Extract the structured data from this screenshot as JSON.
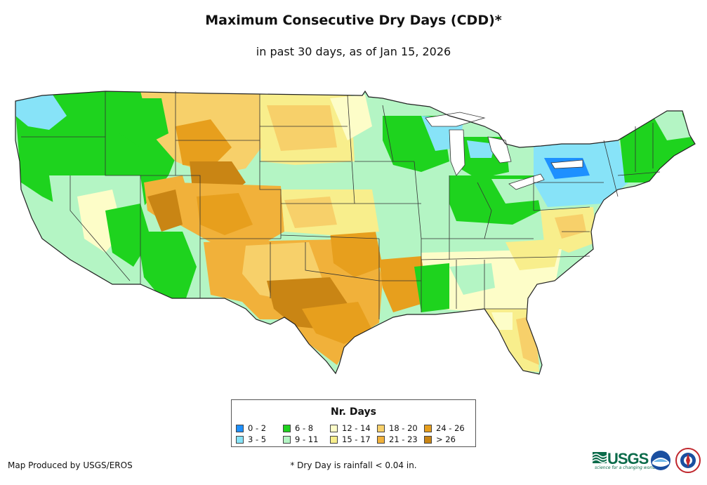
{
  "title": "Maximum Consecutive Dry Days (CDD)*",
  "subtitle": "in past 30 days, as of Jan 15, 2026",
  "legend": {
    "title": "Nr. Days",
    "items": [
      {
        "label": "0 - 2",
        "color": "#1e90ff"
      },
      {
        "label": "3 - 5",
        "color": "#87e3f8"
      },
      {
        "label": "6 - 8",
        "color": "#1ed31e"
      },
      {
        "label": "9 - 11",
        "color": "#b4f5c4"
      },
      {
        "label": "12 - 14",
        "color": "#fdfdc8"
      },
      {
        "label": "15 - 17",
        "color": "#f8ee8c"
      },
      {
        "label": "18 - 20",
        "color": "#f7d06a"
      },
      {
        "label": "21 - 23",
        "color": "#f1b13a"
      },
      {
        "label": "24 - 26",
        "color": "#e79f1d"
      },
      {
        "label": "> 26",
        "color": "#c98514"
      }
    ]
  },
  "credit": "Map Produced by USGS/EROS",
  "footnote": "* Dry Day is rainfall < 0.04 in.",
  "logos": {
    "usgs_text": "USGS",
    "usgs_tagline": "science for a changing world"
  },
  "colors": {
    "border": "#222222",
    "state_line": "#333333"
  }
}
